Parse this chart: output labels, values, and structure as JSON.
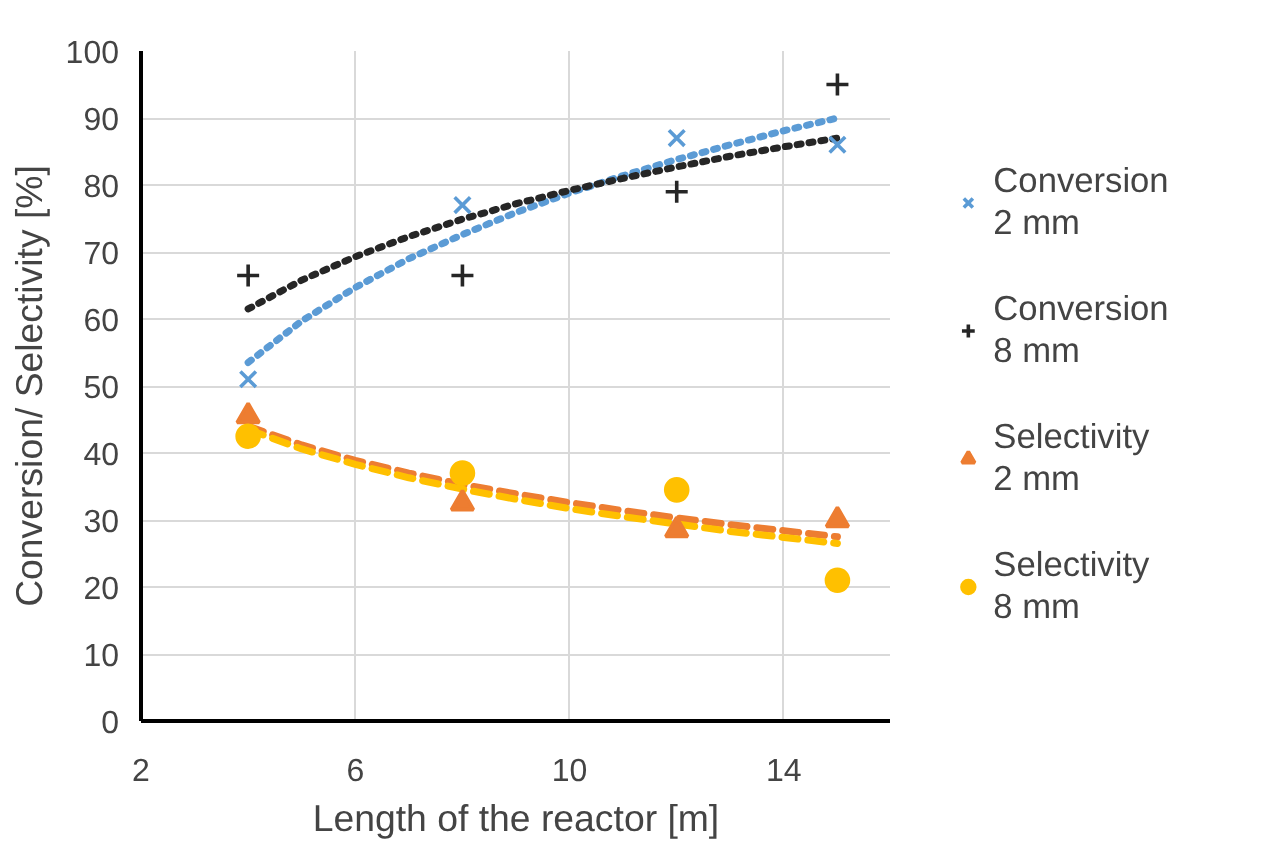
{
  "chart_data": {
    "type": "scatter",
    "xlabel": "Length of the reactor [m]",
    "ylabel": "Conversion/ Selectivity [%]",
    "xlim": [
      2,
      16
    ],
    "xticks": [
      2,
      6,
      10,
      14
    ],
    "ylim": [
      0,
      100
    ],
    "yticks": [
      0,
      10,
      20,
      30,
      40,
      50,
      60,
      70,
      80,
      90,
      100
    ],
    "grid": true,
    "legend": "right",
    "x": [
      4,
      8,
      12,
      15
    ],
    "series": [
      {
        "type": "line",
        "line_style": "dotted",
        "marker": "none",
        "color": "#5b9bd5",
        "x": [
          4,
          5,
          6,
          7,
          8,
          9,
          10,
          11,
          12,
          13,
          14,
          15
        ],
        "values": [
          53.5,
          59.7,
          64.7,
          69.0,
          72.6,
          75.9,
          78.8,
          81.4,
          83.8,
          86.0,
          88.1,
          90.0
        ]
      },
      {
        "type": "line",
        "line_style": "dotted",
        "marker": "none",
        "color": "#262626",
        "x": [
          4,
          5,
          6,
          7,
          8,
          9,
          10,
          11,
          12,
          13,
          14,
          15
        ],
        "values": [
          61.5,
          65.8,
          69.3,
          72.3,
          74.9,
          77.2,
          79.2,
          81.0,
          82.7,
          84.3,
          85.7,
          87.0
        ]
      },
      {
        "type": "line",
        "line_style": "dashed",
        "marker": "none",
        "color": "#ed7d31",
        "x": [
          4,
          5,
          6,
          7,
          8,
          9,
          10,
          11,
          12,
          13,
          14,
          15
        ],
        "values": [
          44.0,
          41.2,
          38.9,
          37.0,
          35.3,
          33.9,
          32.6,
          31.4,
          30.3,
          29.3,
          28.4,
          27.5
        ]
      },
      {
        "type": "line",
        "line_style": "dashed",
        "marker": "none",
        "color": "#ffc000",
        "x": [
          4,
          5,
          6,
          7,
          8,
          9,
          10,
          11,
          12,
          13,
          14,
          15
        ],
        "values": [
          43.5,
          40.6,
          38.3,
          36.3,
          34.6,
          33.1,
          31.7,
          30.5,
          29.4,
          28.3,
          27.4,
          26.5
        ]
      },
      {
        "name": "Conversion\n2 mm",
        "marker": "x",
        "color": "#5b9bd5",
        "values": [
          51,
          77,
          87,
          86
        ]
      },
      {
        "name": "Conversion\n8 mm",
        "marker": "cross",
        "color": "#262626",
        "values": [
          66.5,
          66.5,
          79,
          95
        ]
      },
      {
        "name": "Selectivity\n2 mm",
        "marker": "triangle",
        "color": "#ed7d31",
        "values": [
          45.5,
          32.5,
          28.5,
          30
        ]
      },
      {
        "name": "Selectivity\n8 mm",
        "marker": "circle",
        "color": "#ffc000",
        "values": [
          42.5,
          37,
          34.5,
          21
        ]
      }
    ]
  }
}
